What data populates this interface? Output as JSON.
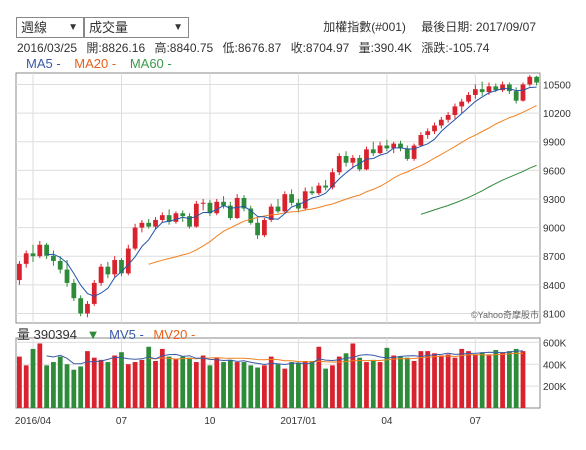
{
  "controls": {
    "period": {
      "value": "週線",
      "arrow": "▼"
    },
    "metric": {
      "value": "成交量",
      "arrow": "▼"
    }
  },
  "header": {
    "index_name": "加權指數(#001)",
    "last_date_label": "最後日期: 2017/09/07"
  },
  "ohlc": {
    "date": "2016/03/25",
    "open": "開:8826.16",
    "high": "高:8840.75",
    "low": "低:8676.87",
    "close": "收:8704.97",
    "volume": "量:390.4K",
    "change": "漲跌:-105.74"
  },
  "ma_legend": {
    "ma5": "MA5 -",
    "ma20": "MA20 -",
    "ma60": "MA60 -"
  },
  "volume_legend": {
    "label": "量 390394",
    "arrow": "▼",
    "mv5": "MV5 -",
    "mv20": "MV20 -"
  },
  "watermark": "©Yahoo奇摩股市",
  "colors": {
    "up": "#d8222e",
    "down": "#2e8b3a",
    "ma5": "#2255aa",
    "ma20": "#f08020",
    "ma60": "#2e8b3a",
    "ma5_label": "#3a5aa8",
    "ma20_label": "#e8601a",
    "ma60_label": "#3a9a4a",
    "mv_line": "#3a5aa8",
    "mv20_line": "#f08020",
    "down_arrow": "#2e8b3a"
  },
  "chart_data": [
    {
      "type": "candlestick",
      "title": "",
      "x_ticks": [
        "2016/04",
        "07",
        "10",
        "2017/01",
        "04",
        "07"
      ],
      "y_ticks": [
        8100,
        8400,
        8700,
        9000,
        9300,
        9600,
        9900,
        10200,
        10500
      ],
      "ylim": [
        8000,
        10620
      ],
      "candles": [
        {
          "o": 8450,
          "h": 8650,
          "l": 8400,
          "c": 8620
        },
        {
          "o": 8620,
          "h": 8760,
          "l": 8580,
          "c": 8730
        },
        {
          "o": 8730,
          "h": 8820,
          "l": 8640,
          "c": 8700
        },
        {
          "o": 8700,
          "h": 8860,
          "l": 8680,
          "c": 8820
        },
        {
          "o": 8820,
          "h": 8840,
          "l": 8670,
          "c": 8705
        },
        {
          "o": 8705,
          "h": 8760,
          "l": 8600,
          "c": 8650
        },
        {
          "o": 8650,
          "h": 8700,
          "l": 8520,
          "c": 8560
        },
        {
          "o": 8560,
          "h": 8660,
          "l": 8380,
          "c": 8420
        },
        {
          "o": 8420,
          "h": 8460,
          "l": 8230,
          "c": 8260
        },
        {
          "o": 8260,
          "h": 8290,
          "l": 8070,
          "c": 8100
        },
        {
          "o": 8100,
          "h": 8230,
          "l": 8060,
          "c": 8200
        },
        {
          "o": 8200,
          "h": 8450,
          "l": 8180,
          "c": 8420
        },
        {
          "o": 8420,
          "h": 8620,
          "l": 8390,
          "c": 8590
        },
        {
          "o": 8590,
          "h": 8640,
          "l": 8470,
          "c": 8510
        },
        {
          "o": 8510,
          "h": 8700,
          "l": 8480,
          "c": 8660
        },
        {
          "o": 8660,
          "h": 8680,
          "l": 8490,
          "c": 8520
        },
        {
          "o": 8520,
          "h": 8820,
          "l": 8500,
          "c": 8780
        },
        {
          "o": 8780,
          "h": 9040,
          "l": 8760,
          "c": 9000
        },
        {
          "o": 9000,
          "h": 9080,
          "l": 8950,
          "c": 9050
        },
        {
          "o": 9050,
          "h": 9090,
          "l": 8990,
          "c": 9010
        },
        {
          "o": 9010,
          "h": 9110,
          "l": 8980,
          "c": 9080
        },
        {
          "o": 9080,
          "h": 9160,
          "l": 9050,
          "c": 9130
        },
        {
          "o": 9130,
          "h": 9190,
          "l": 9030,
          "c": 9060
        },
        {
          "o": 9060,
          "h": 9170,
          "l": 9040,
          "c": 9150
        },
        {
          "o": 9150,
          "h": 9180,
          "l": 9060,
          "c": 9120
        },
        {
          "o": 9120,
          "h": 9150,
          "l": 8990,
          "c": 9010
        },
        {
          "o": 9010,
          "h": 9280,
          "l": 9000,
          "c": 9250
        },
        {
          "o": 9250,
          "h": 9300,
          "l": 9180,
          "c": 9260
        },
        {
          "o": 9260,
          "h": 9290,
          "l": 9120,
          "c": 9150
        },
        {
          "o": 9150,
          "h": 9300,
          "l": 9130,
          "c": 9270
        },
        {
          "o": 9270,
          "h": 9330,
          "l": 9200,
          "c": 9230
        },
        {
          "o": 9230,
          "h": 9270,
          "l": 9080,
          "c": 9100
        },
        {
          "o": 9100,
          "h": 9350,
          "l": 9090,
          "c": 9310
        },
        {
          "o": 9310,
          "h": 9340,
          "l": 9170,
          "c": 9200
        },
        {
          "o": 9200,
          "h": 9230,
          "l": 9030,
          "c": 9050
        },
        {
          "o": 9050,
          "h": 9100,
          "l": 8880,
          "c": 8920
        },
        {
          "o": 8920,
          "h": 9100,
          "l": 8900,
          "c": 9080
        },
        {
          "o": 9080,
          "h": 9250,
          "l": 9060,
          "c": 9220
        },
        {
          "o": 9220,
          "h": 9300,
          "l": 9150,
          "c": 9170
        },
        {
          "o": 9170,
          "h": 9380,
          "l": 9150,
          "c": 9350
        },
        {
          "o": 9350,
          "h": 9400,
          "l": 9230,
          "c": 9260
        },
        {
          "o": 9260,
          "h": 9300,
          "l": 9160,
          "c": 9200
        },
        {
          "o": 9200,
          "h": 9420,
          "l": 9180,
          "c": 9380
        },
        {
          "o": 9380,
          "h": 9430,
          "l": 9340,
          "c": 9360
        },
        {
          "o": 9360,
          "h": 9470,
          "l": 9340,
          "c": 9440
        },
        {
          "o": 9440,
          "h": 9500,
          "l": 9390,
          "c": 9420
        },
        {
          "o": 9420,
          "h": 9620,
          "l": 9400,
          "c": 9580
        },
        {
          "o": 9580,
          "h": 9780,
          "l": 9550,
          "c": 9750
        },
        {
          "o": 9750,
          "h": 9800,
          "l": 9640,
          "c": 9680
        },
        {
          "o": 9680,
          "h": 9760,
          "l": 9620,
          "c": 9730
        },
        {
          "o": 9730,
          "h": 9760,
          "l": 9590,
          "c": 9610
        },
        {
          "o": 9610,
          "h": 9850,
          "l": 9600,
          "c": 9820
        },
        {
          "o": 9820,
          "h": 9900,
          "l": 9750,
          "c": 9780
        },
        {
          "o": 9780,
          "h": 9900,
          "l": 9770,
          "c": 9860
        },
        {
          "o": 9860,
          "h": 9920,
          "l": 9800,
          "c": 9830
        },
        {
          "o": 9830,
          "h": 9900,
          "l": 9780,
          "c": 9880
        },
        {
          "o": 9880,
          "h": 9910,
          "l": 9800,
          "c": 9830
        },
        {
          "o": 9830,
          "h": 9860,
          "l": 9700,
          "c": 9720
        },
        {
          "o": 9720,
          "h": 9880,
          "l": 9700,
          "c": 9860
        },
        {
          "o": 9860,
          "h": 10000,
          "l": 9850,
          "c": 9970
        },
        {
          "o": 9970,
          "h": 10040,
          "l": 9930,
          "c": 10010
        },
        {
          "o": 10010,
          "h": 10100,
          "l": 9980,
          "c": 10070
        },
        {
          "o": 10070,
          "h": 10160,
          "l": 10040,
          "c": 10130
        },
        {
          "o": 10130,
          "h": 10210,
          "l": 10100,
          "c": 10180
        },
        {
          "o": 10180,
          "h": 10300,
          "l": 10140,
          "c": 10270
        },
        {
          "o": 10270,
          "h": 10350,
          "l": 10200,
          "c": 10320
        },
        {
          "o": 10320,
          "h": 10420,
          "l": 10300,
          "c": 10390
        },
        {
          "o": 10390,
          "h": 10500,
          "l": 10350,
          "c": 10450
        },
        {
          "o": 10450,
          "h": 10530,
          "l": 10380,
          "c": 10420
        },
        {
          "o": 10420,
          "h": 10520,
          "l": 10390,
          "c": 10480
        },
        {
          "o": 10480,
          "h": 10510,
          "l": 10420,
          "c": 10440
        },
        {
          "o": 10440,
          "h": 10530,
          "l": 10420,
          "c": 10500
        },
        {
          "o": 10500,
          "h": 10520,
          "l": 10400,
          "c": 10430
        },
        {
          "o": 10430,
          "h": 10470,
          "l": 10300,
          "c": 10330
        },
        {
          "o": 10330,
          "h": 10520,
          "l": 10320,
          "c": 10500
        },
        {
          "o": 10500,
          "h": 10600,
          "l": 10480,
          "c": 10580
        },
        {
          "o": 10580,
          "h": 10590,
          "l": 10490,
          "c": 10520
        }
      ]
    },
    {
      "type": "bar",
      "title": "",
      "y_ticks": [
        "200K",
        "400K",
        "600K"
      ],
      "y_tick_values": [
        200,
        400,
        600
      ],
      "ylim": [
        0,
        640
      ],
      "volumes": [
        470,
        390,
        540,
        590,
        390,
        420,
        470,
        400,
        350,
        380,
        520,
        460,
        440,
        420,
        480,
        510,
        400,
        420,
        440,
        560,
        430,
        540,
        470,
        450,
        470,
        460,
        420,
        480,
        390,
        460,
        420,
        440,
        420,
        420,
        390,
        370,
        390,
        470,
        400,
        360,
        420,
        410,
        430,
        430,
        560,
        360,
        390,
        470,
        500,
        590,
        460,
        420,
        440,
        420,
        550,
        480,
        470,
        460,
        430,
        520,
        520,
        500,
        480,
        490,
        460,
        540,
        520,
        490,
        510,
        490,
        530,
        510,
        520,
        540,
        520
      ]
    }
  ]
}
